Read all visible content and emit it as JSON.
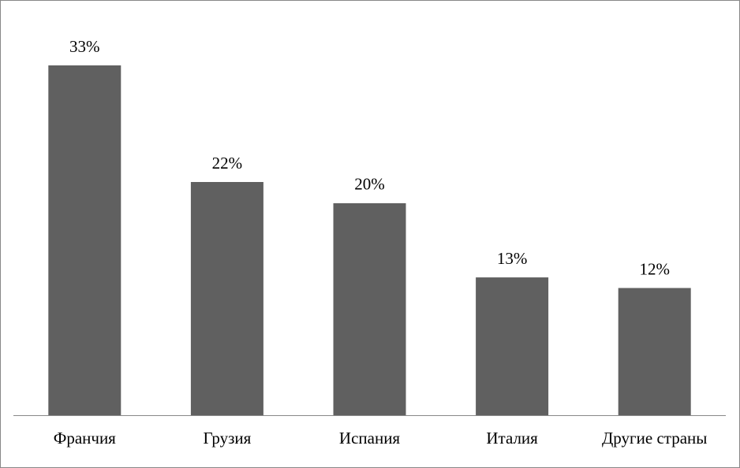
{
  "chart_data": {
    "type": "bar",
    "categories": [
      "Франчия",
      "Грузия",
      "Испания",
      "Италия",
      "Другие страны"
    ],
    "values": [
      33,
      22,
      20,
      13,
      12
    ],
    "value_labels": [
      "33%",
      "22%",
      "20%",
      "13%",
      "12%"
    ],
    "color": "#606060"
  }
}
